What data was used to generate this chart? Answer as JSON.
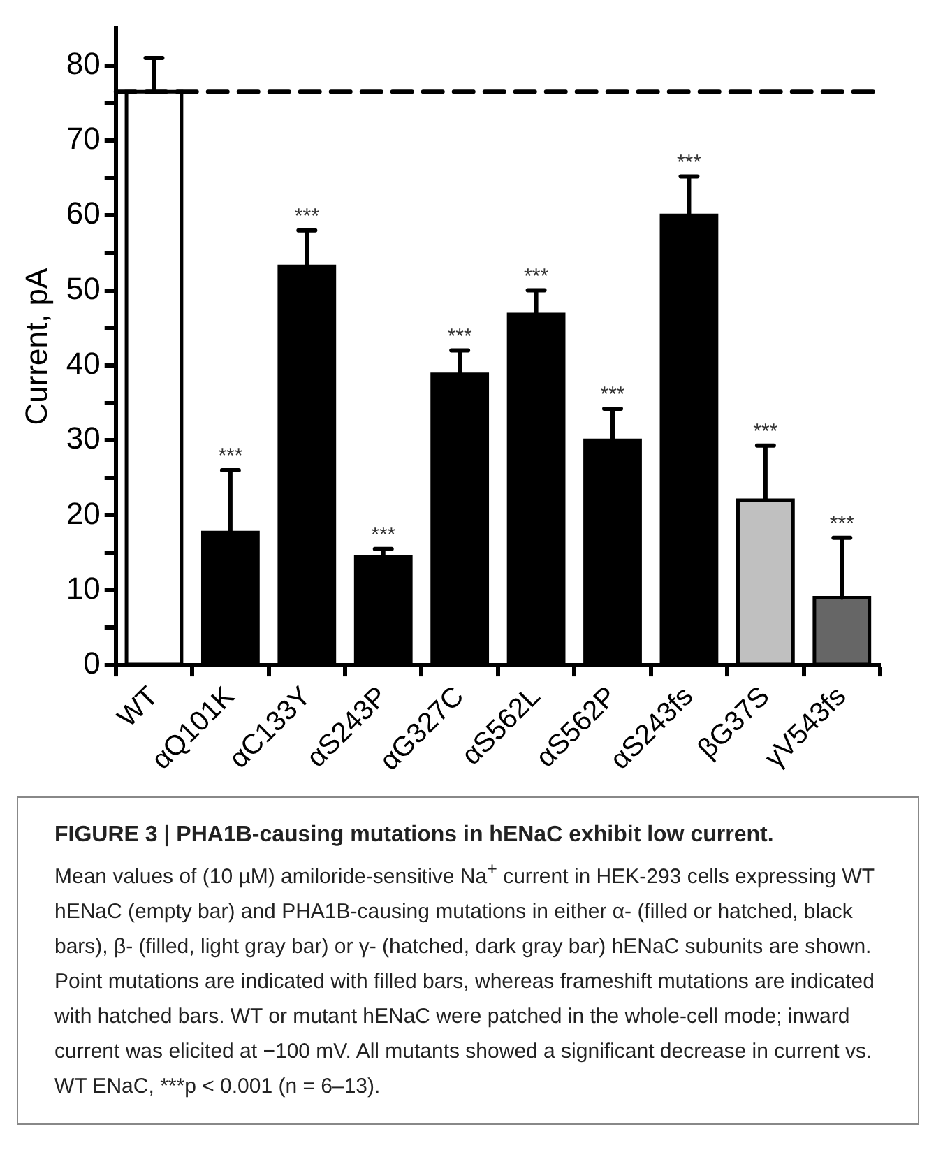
{
  "chart_data": {
    "type": "bar",
    "title": "FIGURE 3 | PHA1B-causing mutations in hENaC exhibit low current.",
    "ylabel": "Current, pA",
    "categories": [
      "WT",
      "αQ101K",
      "αC133Y",
      "αS243P",
      "αG327C",
      "αS562L",
      "αS562P",
      "αS243fs",
      "βG37S",
      "γV543fs"
    ],
    "values": [
      76.5,
      17.7,
      53.2,
      14.5,
      38.8,
      46.8,
      30,
      60,
      22,
      9
    ],
    "colors": [
      "#ffffff",
      "#000000",
      "#000000",
      "#000000",
      "#000000",
      "#000000",
      "#000000",
      "#000000",
      "#c0c0c0",
      "#666666"
    ],
    "errors": [
      [
        76.5,
        81
      ],
      [
        17.7,
        26
      ],
      [
        53.2,
        58
      ],
      [
        14.5,
        15.5
      ],
      [
        38.8,
        42
      ],
      [
        46.8,
        50
      ],
      [
        30,
        34.2
      ],
      [
        60,
        65.2
      ],
      [
        22,
        29.3
      ],
      [
        9,
        17
      ]
    ],
    "ylim": [
      0,
      85
    ],
    "yticks": [
      0,
      {
        "value": 5,
        "label": null
      },
      10,
      {
        "value": 15,
        "label": null
      },
      20,
      {
        "value": 25,
        "label": null
      },
      30,
      {
        "value": 35,
        "label": null
      },
      40,
      {
        "value": 45,
        "label": null
      },
      50,
      {
        "value": 55,
        "label": null
      },
      60,
      {
        "value": 65,
        "label": null
      },
      70,
      {
        "value": 75,
        "label": null
      },
      80
    ],
    "ref_lines": [
      {
        "axis": "y",
        "value": 76.5,
        "color": "#000000",
        "line_style": "dashed"
      }
    ],
    "grid": false,
    "legend": false,
    "annotations": [
      {
        "text": "***",
        "x": "αQ101K",
        "y": 26
      },
      {
        "text": "***",
        "x": "αC133Y",
        "y": 58
      },
      {
        "text": "***",
        "x": "αS243P",
        "y": 15.5
      },
      {
        "text": "***",
        "x": "αG327C",
        "y": 42
      },
      {
        "text": "***",
        "x": "αS562L",
        "y": 50
      },
      {
        "text": "***",
        "x": "αS562P",
        "y": 34.2
      },
      {
        "text": "***",
        "x": "αS243fs",
        "y": 65.2
      },
      {
        "text": "***",
        "x": "βG37S",
        "y": 29.3
      },
      {
        "text": "***",
        "x": "γV543fs",
        "y": 17
      },
      "Mean values of (10 µM) amiloride-sensitive Na$^{+}$ current in HEK-293 cells expressing WT hENaC (empty bar) and PHA1B-causing mutations in either α- (filled or hatched, black bars), β- (filled, light gray bar) or γ- (hatched, dark gray bar) hENaC subunits are shown. Point mutations are indicated with filled bars, whereas frameshift mutations are indicated with hatched bars. WT or mutant hENaC were patched in the whole-cell mode; inward current was elicited at −100 mV. All mutants showed a significant decrease in current vs. WT ENaC, ***p < 0.001 (n = 6–13)."
    ]
  }
}
